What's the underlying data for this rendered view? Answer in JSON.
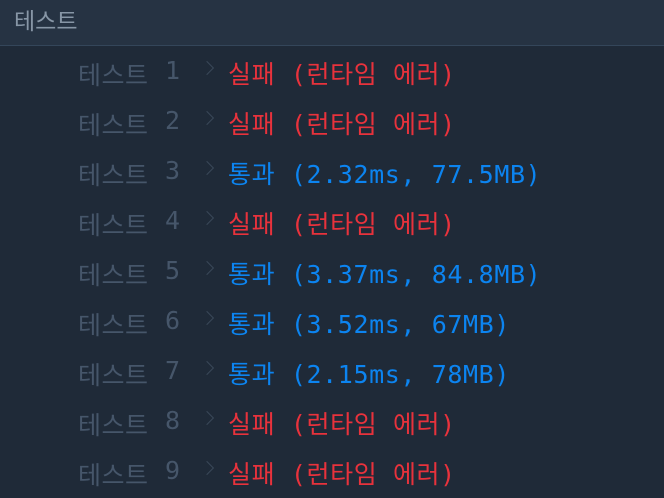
{
  "header": {
    "title": "테스트"
  },
  "tests": [
    {
      "label": "테스트",
      "num": "1",
      "status": "fail",
      "result": "실패 (런타임 에러)"
    },
    {
      "label": "테스트",
      "num": "2",
      "status": "fail",
      "result": "실패 (런타임 에러)"
    },
    {
      "label": "테스트",
      "num": "3",
      "status": "pass",
      "result": "통과 (2.32ms, 77.5MB)"
    },
    {
      "label": "테스트",
      "num": "4",
      "status": "fail",
      "result": "실패 (런타임 에러)"
    },
    {
      "label": "테스트",
      "num": "5",
      "status": "pass",
      "result": "통과 (3.37ms, 84.8MB)"
    },
    {
      "label": "테스트",
      "num": "6",
      "status": "pass",
      "result": "통과 (3.52ms, 67MB)"
    },
    {
      "label": "테스트",
      "num": "7",
      "status": "pass",
      "result": "통과 (2.15ms, 78MB)"
    },
    {
      "label": "테스트",
      "num": "8",
      "status": "fail",
      "result": "실패 (런타임 에러)"
    },
    {
      "label": "테스트",
      "num": "9",
      "status": "fail",
      "result": "실패 (런타임 에러)"
    }
  ],
  "icons": {
    "separator": "chevron-right-icon"
  },
  "colors": {
    "fail": "#e8323c",
    "pass": "#0c84f0",
    "label": "#46566a",
    "background": "#1f2a38"
  }
}
